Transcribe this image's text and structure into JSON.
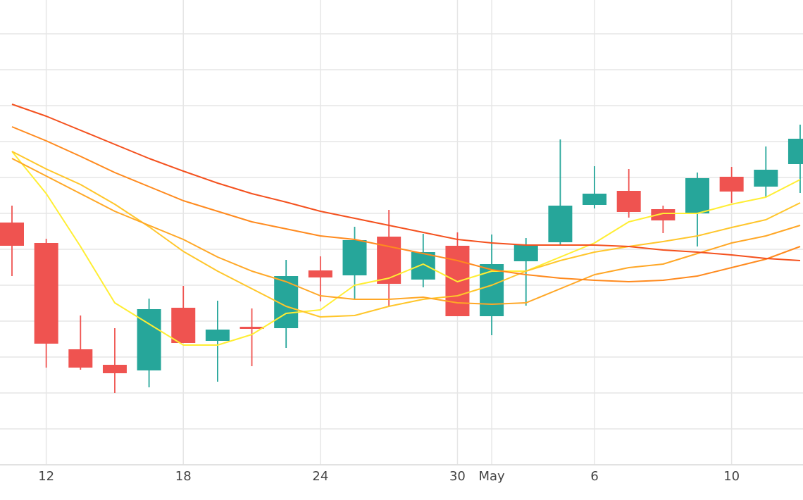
{
  "chart_data": {
    "type": "candlestick",
    "categories": [
      null,
      "12",
      null,
      null,
      null,
      "18",
      null,
      null,
      null,
      "24",
      null,
      null,
      null,
      "30",
      "May",
      null,
      null,
      "6",
      null,
      null,
      null,
      "10",
      null,
      null
    ],
    "open": [
      344,
      315,
      164,
      142,
      134,
      223,
      176,
      196,
      194,
      276,
      269,
      324,
      263,
      311,
      211,
      289,
      316,
      369,
      389,
      363,
      357,
      409,
      395,
      427
    ],
    "high": [
      368,
      321,
      212,
      194,
      236,
      254,
      233,
      222,
      291,
      296,
      338,
      362,
      328,
      330,
      327,
      322,
      462,
      424,
      420,
      368,
      415,
      423,
      452,
      483
    ],
    "low": [
      268,
      138,
      135,
      102,
      110,
      173,
      118,
      140,
      166,
      232,
      234,
      225,
      252,
      211,
      184,
      226,
      311,
      364,
      351,
      329,
      310,
      372,
      381,
      386
    ],
    "close": [
      311,
      172,
      138,
      130,
      221,
      173,
      192,
      193,
      268,
      266,
      319,
      257,
      302,
      211,
      285,
      312,
      368,
      385,
      359,
      347,
      407,
      388,
      419,
      463
    ],
    "up_color": "#26a69a",
    "down_color": "#ef5350",
    "lines": [
      {
        "color": "#ffee33",
        "values": [
          445,
          385,
          310,
          230,
          200,
          170,
          170,
          185,
          215,
          220,
          255,
          265,
          285,
          260,
          275,
          275,
          295,
          315,
          345,
          357,
          357,
          370,
          380,
          405
        ]
      },
      {
        "color": "#ffc62b",
        "values": [
          445,
          420,
          398,
          370,
          338,
          303,
          275,
          250,
          225,
          210,
          212,
          225,
          235,
          240,
          255,
          275,
          290,
          302,
          310,
          317,
          325,
          337,
          348,
          372
        ]
      },
      {
        "color": "#ffa726",
        "values": [
          435,
          410,
          385,
          360,
          340,
          320,
          295,
          275,
          260,
          240,
          235,
          235,
          238,
          230,
          228,
          230,
          250,
          270,
          280,
          285,
          300,
          315,
          325,
          340
        ]
      },
      {
        "color": "#ff8a1e",
        "values": [
          480,
          460,
          438,
          415,
          395,
          375,
          360,
          345,
          335,
          325,
          320,
          310,
          300,
          290,
          277,
          270,
          265,
          262,
          260,
          262,
          268,
          280,
          292,
          310
        ]
      },
      {
        "color": "#f4511e",
        "values": [
          512,
          495,
          475,
          455,
          435,
          417,
          400,
          385,
          373,
          360,
          350,
          340,
          330,
          320,
          315,
          312,
          312,
          312,
          310,
          305,
          302,
          298,
          293,
          290
        ]
      }
    ],
    "ylim": [
      0,
      660
    ],
    "yticks": [
      0,
      51,
      102,
      153,
      204,
      255,
      306,
      357,
      408,
      459,
      510,
      561,
      612
    ],
    "grid": true
  }
}
